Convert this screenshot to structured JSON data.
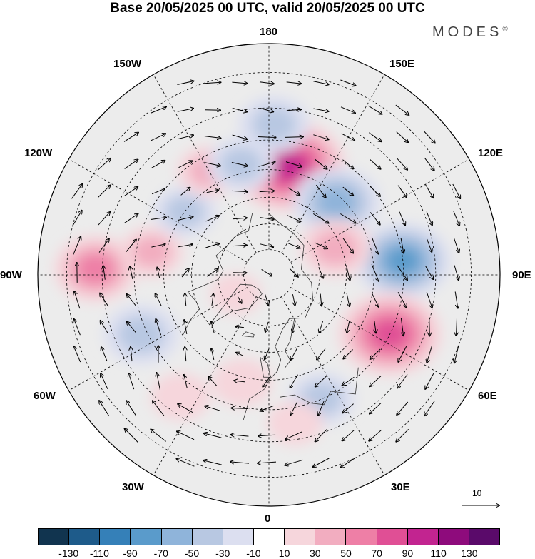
{
  "title": "Base 20/05/2025 00 UTC, valid 20/05/2025 00 UTC",
  "brand": "MODES",
  "brand_mark": "®",
  "longitude_labels": {
    "top": "180",
    "bottom": "0",
    "left": "90W",
    "right": "90E",
    "upper_left_150": "150W",
    "upper_right_150": "150E",
    "upper_left_120": "120W",
    "upper_right_120": "120E",
    "lower_left_60": "60W",
    "lower_right_60": "60E",
    "lower_left_30": "30W",
    "lower_right_30": "30E"
  },
  "vector_scale_label": "10",
  "colorbar": {
    "colors": [
      "#11344f",
      "#1e5b8a",
      "#3580b8",
      "#5a9bcb",
      "#8fb4da",
      "#b8c8e2",
      "#dcdff0",
      "#ffffff",
      "#f6d6dc",
      "#f2adc0",
      "#ee7fa6",
      "#e04f95",
      "#c22490",
      "#8e0b7c",
      "#5a0a6a"
    ],
    "tick_labels": [
      "-130",
      "-110",
      "-90",
      "-70",
      "-50",
      "-30",
      "-10",
      "10",
      "30",
      "50",
      "70",
      "90",
      "110",
      "130"
    ]
  },
  "anomaly_centers": [
    {
      "lon": 170,
      "lat": 48,
      "value": 95
    },
    {
      "lon": 137,
      "lat": 52,
      "value": -60
    },
    {
      "lon": 96,
      "lat": 40,
      "value": -70
    },
    {
      "lon": 64,
      "lat": 40,
      "value": 80
    },
    {
      "lon": 112,
      "lat": 62,
      "value": 40
    },
    {
      "lon": -92,
      "lat": 28,
      "value": 55
    },
    {
      "lon": -101,
      "lat": 45,
      "value": 30
    },
    {
      "lon": -65,
      "lat": 38,
      "value": -45
    },
    {
      "lon": -127,
      "lat": 50,
      "value": -30
    },
    {
      "lon": -150,
      "lat": 45,
      "value": 30
    },
    {
      "lon": -166,
      "lat": 47,
      "value": -35
    },
    {
      "lon": 178,
      "lat": 35,
      "value": -40
    },
    {
      "lon": -36,
      "lat": 35,
      "value": 25
    },
    {
      "lon": -14,
      "lat": 48,
      "value": 25
    },
    {
      "lon": 23,
      "lat": 40,
      "value": -35
    },
    {
      "lon": 10,
      "lat": 35,
      "value": 20
    },
    {
      "lon": -60,
      "lat": 75,
      "value": 15
    }
  ]
}
